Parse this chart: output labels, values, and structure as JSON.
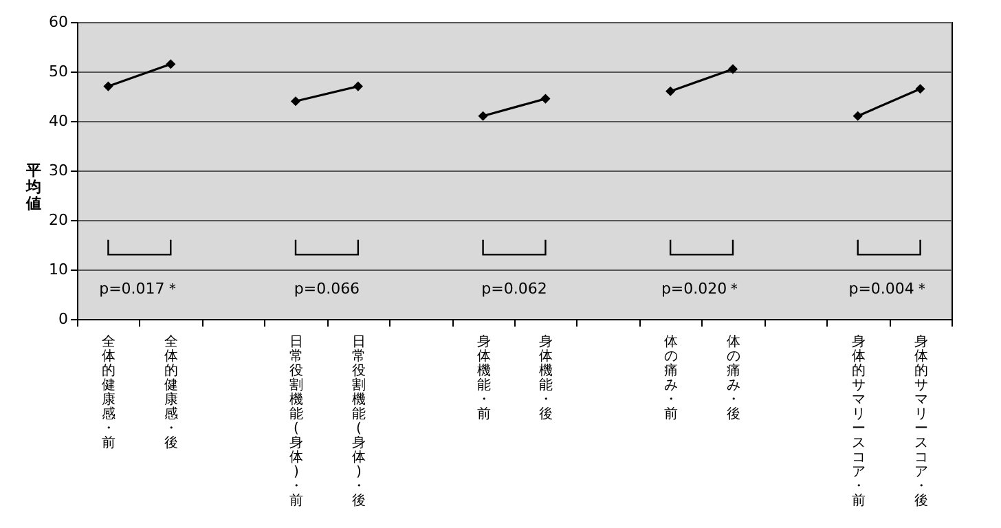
{
  "chart_data": {
    "type": "line",
    "ylabel": "平均値",
    "categories": [
      "全体的健康感・前",
      "全体的健康感・後",
      null,
      "日常役割機能(身体)・前",
      "日常役割機能(身体)・後",
      null,
      "身体機能・前",
      "身体機能・後",
      null,
      "体の痛み・前",
      "体の痛み・後",
      null,
      "身体的サマリースコア・前",
      "身体的サマリースコア・後"
    ],
    "series": [
      {
        "color": "#000000",
        "values": [
          47,
          51.5,
          null,
          44,
          47,
          null,
          41,
          44.5,
          null,
          46,
          50.5,
          null,
          41,
          46.5
        ]
      }
    ],
    "ylim": [
      0,
      60
    ],
    "yticks": [
      0,
      10,
      20,
      30,
      40,
      50,
      60
    ],
    "grid": "y",
    "marker": "diamond",
    "annotations": [
      "p=0.017＊",
      "p=0.066",
      "p=0.062",
      "p=0.020＊",
      "p=0.004＊"
    ]
  }
}
